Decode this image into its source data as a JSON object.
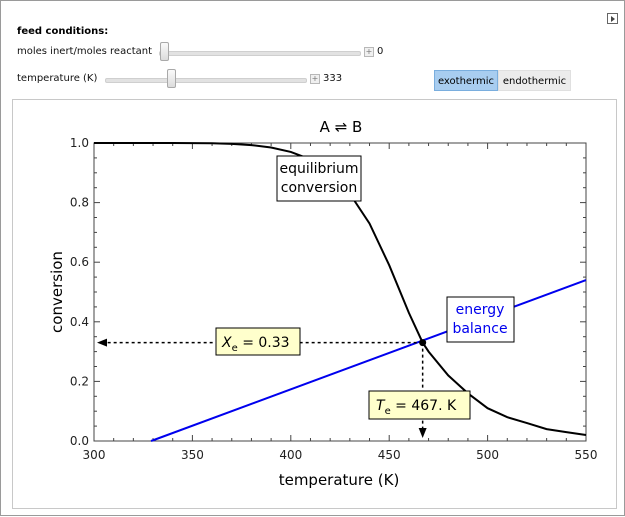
{
  "controls": {
    "heading": "feed conditions:",
    "slider1": {
      "label": "moles inert/moles reactant",
      "value": "0",
      "position_fraction": 0.0
    },
    "slider2": {
      "label": "temperature (K)",
      "value": "333",
      "position_fraction": 0.33
    },
    "toggle": {
      "options": [
        "exothermic",
        "endothermic"
      ],
      "selected": "exothermic"
    }
  },
  "colors": {
    "equilibrium": "#000000",
    "energy_balance": "#0000ee",
    "annotation_bg": "#ffffcc",
    "selected_toggle": "#a8cdf0"
  },
  "chart_data": {
    "type": "line",
    "title": "A ⇌ B",
    "xlabel": "temperature (K)",
    "ylabel": "conversion",
    "xlim": [
      300,
      550
    ],
    "ylim": [
      0.0,
      1.0
    ],
    "xticks": [
      "300",
      "350",
      "400",
      "450",
      "500",
      "550"
    ],
    "yticks": [
      "0.0",
      "0.2",
      "0.4",
      "0.6",
      "0.8",
      "1.0"
    ],
    "series": [
      {
        "name": "equilibrium conversion",
        "x": [
          300,
          320,
          340,
          360,
          370,
          380,
          390,
          400,
          410,
          420,
          430,
          440,
          450,
          460,
          467,
          470,
          480,
          490,
          500,
          510,
          520,
          530,
          540,
          550
        ],
        "y": [
          1.0,
          1.0,
          1.0,
          0.999,
          0.997,
          0.993,
          0.985,
          0.97,
          0.945,
          0.9,
          0.83,
          0.73,
          0.59,
          0.43,
          0.33,
          0.3,
          0.22,
          0.16,
          0.11,
          0.08,
          0.06,
          0.04,
          0.03,
          0.02
        ]
      },
      {
        "name": "energy balance",
        "x": [
          329,
          550
        ],
        "y": [
          0.0,
          0.54
        ]
      }
    ],
    "annotations": {
      "eq_label": [
        "equilibrium",
        "conversion"
      ],
      "eb_label": [
        "energy",
        "balance"
      ],
      "xe_symbol": "X",
      "xe_sub": "e",
      "xe_value": " = 0.33",
      "te_symbol": "T",
      "te_sub": "e",
      "te_value": " = 467. K",
      "intersection": {
        "x": 467,
        "y": 0.33
      }
    }
  }
}
